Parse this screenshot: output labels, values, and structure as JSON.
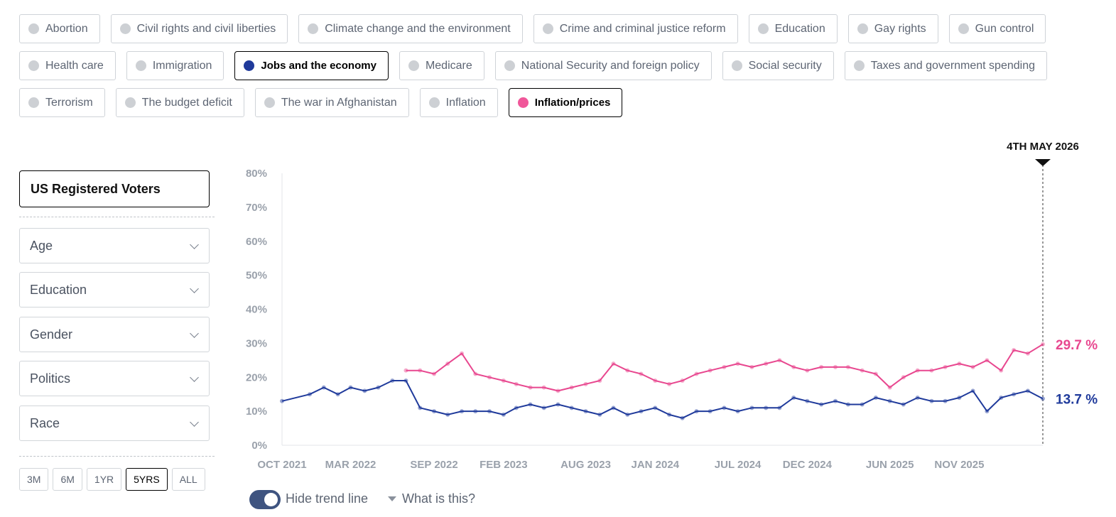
{
  "topics": {
    "rows": [
      [
        {
          "label": "Abortion",
          "selected": false
        },
        {
          "label": "Civil rights and civil liberties",
          "selected": false
        },
        {
          "label": "Climate change and the environment",
          "selected": false
        },
        {
          "label": "Crime and criminal justice reform",
          "selected": false
        },
        {
          "label": "Education",
          "selected": false
        },
        {
          "label": "Gay rights",
          "selected": false
        },
        {
          "label": "Gun control",
          "selected": false
        }
      ],
      [
        {
          "label": "Health care",
          "selected": false
        },
        {
          "label": "Immigration",
          "selected": false
        },
        {
          "label": "Jobs and the economy",
          "selected": true,
          "color": "#1f3a9b"
        },
        {
          "label": "Medicare",
          "selected": false
        },
        {
          "label": "National Security and foreign policy",
          "selected": false
        },
        {
          "label": "Social security",
          "selected": false
        },
        {
          "label": "Taxes and government spending",
          "selected": false
        }
      ],
      [
        {
          "label": "Terrorism",
          "selected": false
        },
        {
          "label": "The budget deficit",
          "selected": false
        },
        {
          "label": "The war in Afghanistan",
          "selected": false
        },
        {
          "label": "Inflation",
          "selected": false
        },
        {
          "label": "Inflation/prices",
          "selected": true,
          "color": "#f0579a"
        }
      ]
    ]
  },
  "sidebar": {
    "population": "US Registered Voters",
    "filters": [
      "Age",
      "Education",
      "Gender",
      "Politics",
      "Race"
    ]
  },
  "ranges": {
    "items": [
      "3M",
      "6M",
      "1YR",
      "5YRS",
      "ALL"
    ],
    "active": "5YRS"
  },
  "controls": {
    "trend_toggle_label": "Hide trend line",
    "trend_toggle_on": true,
    "what_is_this": "What is this?"
  },
  "chart_data": {
    "type": "line",
    "marker_label": "4TH MAY 2026",
    "y_ticks": [
      "0%",
      "10%",
      "20%",
      "30%",
      "40%",
      "50%",
      "60%",
      "70%",
      "80%"
    ],
    "ylim": [
      0,
      80
    ],
    "x_ticks": [
      "OCT 2021",
      "MAR 2022",
      "SEP 2022",
      "FEB 2023",
      "AUG 2023",
      "JAN 2024",
      "JUL 2024",
      "DEC 2024",
      "JUN 2025",
      "NOV 2025"
    ],
    "x_range": [
      "2021-10",
      "2026-05-04"
    ],
    "series": [
      {
        "name": "Jobs and the economy",
        "color": "#1f3a9b",
        "end_label": "13.7 %",
        "points": [
          [
            "2021-10",
            13
          ],
          [
            "2021-12",
            15
          ],
          [
            "2022-01",
            17
          ],
          [
            "2022-02",
            15
          ],
          [
            "2022-03",
            17
          ],
          [
            "2022-04",
            16
          ],
          [
            "2022-05",
            17
          ],
          [
            "2022-06",
            19
          ],
          [
            "2022-07",
            19
          ],
          [
            "2022-08",
            11
          ],
          [
            "2022-09",
            10
          ],
          [
            "2022-10",
            9
          ],
          [
            "2022-11",
            10
          ],
          [
            "2022-12",
            10
          ],
          [
            "2023-01",
            10
          ],
          [
            "2023-02",
            9
          ],
          [
            "2023-03",
            11
          ],
          [
            "2023-04",
            12
          ],
          [
            "2023-05",
            11
          ],
          [
            "2023-06",
            12
          ],
          [
            "2023-07",
            11
          ],
          [
            "2023-08",
            10
          ],
          [
            "2023-09",
            9
          ],
          [
            "2023-10",
            11
          ],
          [
            "2023-11",
            9
          ],
          [
            "2023-12",
            10
          ],
          [
            "2024-01",
            11
          ],
          [
            "2024-02",
            9
          ],
          [
            "2024-03",
            8
          ],
          [
            "2024-04",
            10
          ],
          [
            "2024-05",
            10
          ],
          [
            "2024-06",
            11
          ],
          [
            "2024-07",
            10
          ],
          [
            "2024-08",
            11
          ],
          [
            "2024-09",
            11
          ],
          [
            "2024-10",
            11
          ],
          [
            "2024-11",
            14
          ],
          [
            "2024-12",
            13
          ],
          [
            "2025-01",
            12
          ],
          [
            "2025-02",
            13
          ],
          [
            "2025-03",
            12
          ],
          [
            "2025-04",
            12
          ],
          [
            "2025-05",
            14
          ],
          [
            "2025-06",
            13
          ],
          [
            "2025-07",
            12
          ],
          [
            "2025-08",
            14
          ],
          [
            "2025-09",
            13
          ],
          [
            "2025-10",
            13
          ],
          [
            "2025-11",
            14
          ],
          [
            "2025-12",
            16
          ],
          [
            "2026-01",
            10
          ],
          [
            "2026-02",
            14
          ],
          [
            "2026-03",
            15
          ],
          [
            "2026-04",
            16
          ],
          [
            "2026-05-04",
            13.7
          ]
        ]
      },
      {
        "name": "Inflation/prices",
        "color": "#e8478f",
        "end_label": "29.7 %",
        "points": [
          [
            "2022-07",
            22
          ],
          [
            "2022-08",
            22
          ],
          [
            "2022-09",
            21
          ],
          [
            "2022-10",
            24
          ],
          [
            "2022-11",
            27
          ],
          [
            "2022-12",
            21
          ],
          [
            "2023-01",
            20
          ],
          [
            "2023-02",
            19
          ],
          [
            "2023-03",
            18
          ],
          [
            "2023-04",
            17
          ],
          [
            "2023-05",
            17
          ],
          [
            "2023-06",
            16
          ],
          [
            "2023-07",
            17
          ],
          [
            "2023-08",
            18
          ],
          [
            "2023-09",
            19
          ],
          [
            "2023-10",
            24
          ],
          [
            "2023-11",
            22
          ],
          [
            "2023-12",
            21
          ],
          [
            "2024-01",
            19
          ],
          [
            "2024-02",
            18
          ],
          [
            "2024-03",
            19
          ],
          [
            "2024-04",
            21
          ],
          [
            "2024-05",
            22
          ],
          [
            "2024-06",
            23
          ],
          [
            "2024-07",
            24
          ],
          [
            "2024-08",
            23
          ],
          [
            "2024-09",
            24
          ],
          [
            "2024-10",
            25
          ],
          [
            "2024-11",
            23
          ],
          [
            "2024-12",
            22
          ],
          [
            "2025-01",
            23
          ],
          [
            "2025-02",
            23
          ],
          [
            "2025-03",
            23
          ],
          [
            "2025-04",
            22
          ],
          [
            "2025-05",
            21
          ],
          [
            "2025-06",
            17
          ],
          [
            "2025-07",
            20
          ],
          [
            "2025-08",
            22
          ],
          [
            "2025-09",
            22
          ],
          [
            "2025-10",
            23
          ],
          [
            "2025-11",
            24
          ],
          [
            "2025-12",
            23
          ],
          [
            "2026-01",
            25
          ],
          [
            "2026-02",
            22
          ],
          [
            "2026-03",
            28
          ],
          [
            "2026-04",
            27
          ],
          [
            "2026-05-04",
            29.7
          ]
        ]
      }
    ]
  }
}
